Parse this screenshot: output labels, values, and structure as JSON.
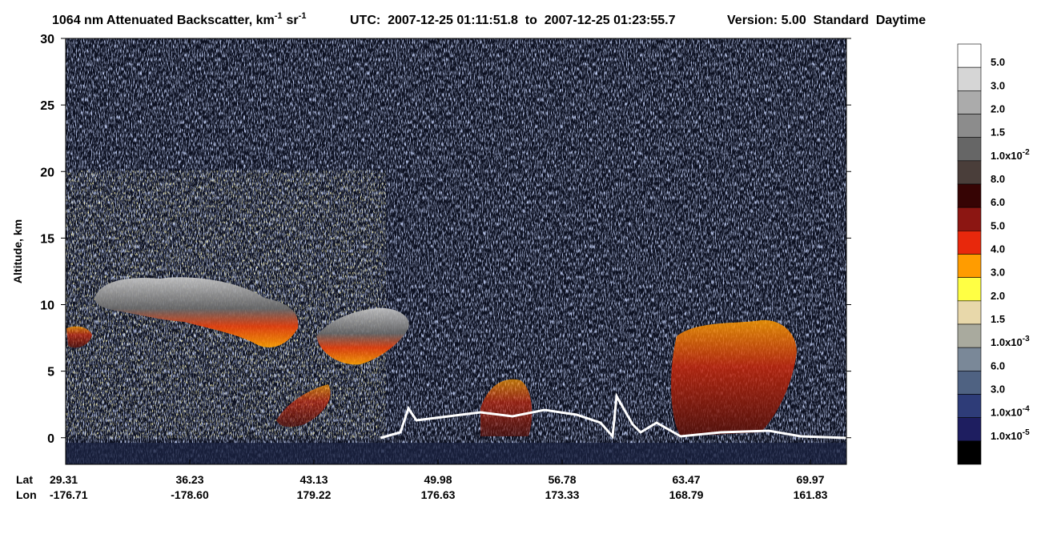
{
  "chart_data": {
    "type": "heatmap",
    "title": {
      "main": "1064 nm Attenuated Backscatter, km",
      "unit1_exp": "-1",
      "unit2": "sr",
      "unit2_exp": "-1",
      "utc": "UTC:  2007-12-25 01:11:51.8  to  2007-12-25 01:23:55.7",
      "version": "Version: 5.00  Standard  Daytime"
    },
    "y_label": "Altitude, km",
    "ylim": [
      -2,
      30
    ],
    "yticks": [
      0,
      5,
      10,
      15,
      20,
      25,
      30
    ],
    "x_rows": [
      {
        "name": "Lat",
        "labels": [
          "29.31",
          "36.23",
          "43.13",
          "49.98",
          "56.78",
          "63.47",
          "69.97"
        ]
      },
      {
        "name": "Lon",
        "labels": [
          "-176.71",
          "-178.60",
          "179.22",
          "176.63",
          "173.33",
          "168.79",
          "161.83"
        ]
      }
    ],
    "colorbar": {
      "colors": [
        "#ffffff",
        "#d6d6d6",
        "#ababab",
        "#8c8c8c",
        "#666666",
        "#4a3e3a",
        "#360404",
        "#8c1612",
        "#e8280c",
        "#ff9c00",
        "#ffff44",
        "#e8d8aa",
        "#a9aa9e",
        "#7a8898",
        "#4f6282",
        "#2e3c78",
        "#1e1e60",
        "#000000"
      ],
      "labels": [
        {
          "text": "5.0"
        },
        {
          "text": "3.0"
        },
        {
          "text": "2.0"
        },
        {
          "text": "1.5"
        },
        {
          "text": "1.0x10",
          "sup": "-2"
        },
        {
          "text": "8.0"
        },
        {
          "text": "6.0"
        },
        {
          "text": "5.0"
        },
        {
          "text": "4.0"
        },
        {
          "text": "3.0"
        },
        {
          "text": "2.0"
        },
        {
          "text": "1.5"
        },
        {
          "text": "1.0x10",
          "sup": "-3"
        },
        {
          "text": "6.0"
        },
        {
          "text": "3.0"
        },
        {
          "text": "1.0x10",
          "sup": "-4"
        },
        {
          "text": "1.0x10",
          "sup": "-5"
        }
      ]
    }
  }
}
